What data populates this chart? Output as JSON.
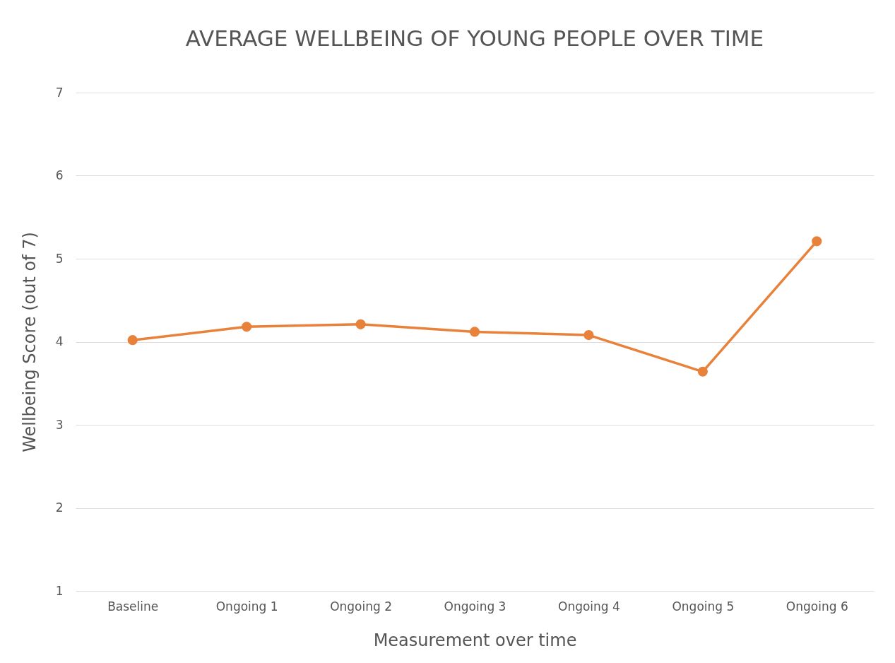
{
  "chart_data": {
    "type": "line",
    "title": "AVERAGE WELLBEING OF YOUNG PEOPLE OVER TIME",
    "xlabel": "Measurement over time",
    "ylabel": "Wellbeing Score (out of 7)",
    "categories": [
      "Baseline",
      "Ongoing 1",
      "Ongoing 2",
      "Ongoing 3",
      "Ongoing 4",
      "Ongoing 5",
      "Ongoing 6"
    ],
    "series": [
      {
        "color": "#e8813a",
        "values": [
          4.02,
          4.18,
          4.21,
          4.12,
          4.08,
          3.64,
          5.21
        ]
      }
    ],
    "ylim": [
      1,
      7
    ],
    "yticks": [
      1,
      2,
      3,
      4,
      5,
      6,
      7
    ],
    "grid": "y",
    "marker": "circle",
    "line_style": "solid",
    "legend": false
  }
}
